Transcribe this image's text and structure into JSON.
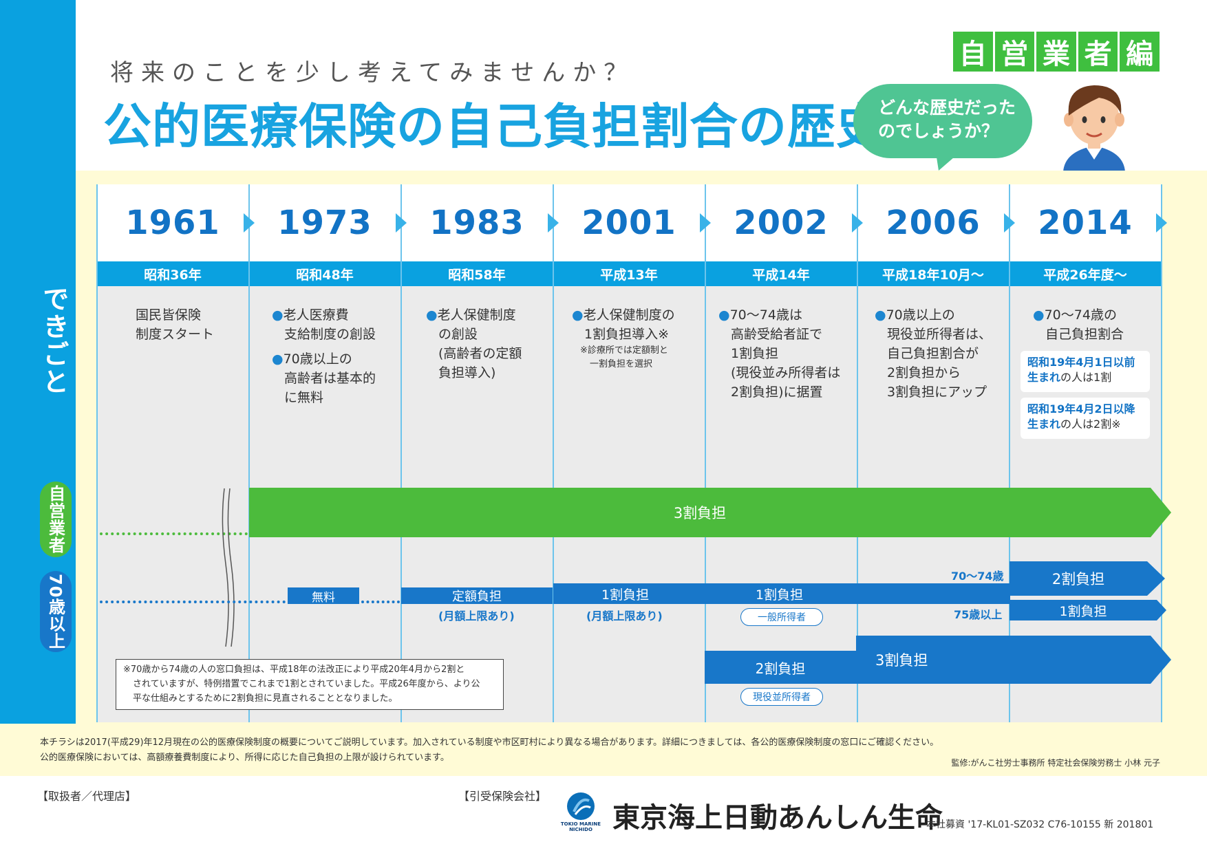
{
  "header": {
    "subtitle": "将来のことを少し考えてみませんか？",
    "title": "公的医療保険の自己負担割合の歴史",
    "badge_chars": [
      "自",
      "営",
      "業",
      "者",
      "編"
    ],
    "bubble_line1": "どんな歴史だった",
    "bubble_line2": "のでしょうか？"
  },
  "sidebar": {
    "label": "できごと",
    "pill_self_employed": "自営業者",
    "pill_70_over": "70歳以上"
  },
  "columns": [
    {
      "year": "1961",
      "era": "昭和36年"
    },
    {
      "year": "1973",
      "era": "昭和48年"
    },
    {
      "year": "1983",
      "era": "昭和58年"
    },
    {
      "year": "2001",
      "era": "平成13年"
    },
    {
      "year": "2002",
      "era": "平成14年"
    },
    {
      "year": "2006",
      "era": "平成18年10月～"
    },
    {
      "year": "2014",
      "era": "平成26年度～"
    }
  ],
  "events": {
    "c1_l1": "国民皆保険",
    "c1_l2": "制度スタート",
    "c2_a1": "老人医療費",
    "c2_a2": "支給制度の創設",
    "c2_b1": "70歳以上の",
    "c2_b2": "高齢者は基本的",
    "c2_b3": "に無料",
    "c3_l1": "老人保健制度",
    "c3_l2": "の創設",
    "c3_l3": "(高齢者の定額",
    "c3_l4": "負担導入)",
    "c4_l1": "老人保健制度の",
    "c4_l2": "1割負担導入※",
    "c4_n1": "※診療所では定額制と",
    "c4_n2": "一割負担を選択",
    "c5_l1": "70～74歳は",
    "c5_l2": "高齢受給者証で",
    "c5_l3": "1割負担",
    "c5_l4": "(現役並み所得者は",
    "c5_l5": "2割負担)に据置",
    "c6_l1": "70歳以上の",
    "c6_l2": "現役並所得者は、",
    "c6_l3": "自己負担割合が",
    "c6_l4": "2割負担から",
    "c6_l5": "3割負担にアップ",
    "c7_l1": "70～74歳の",
    "c7_l2": "自己負担割合",
    "c7_box1_b": "昭和19年4月1日以前",
    "c7_box1_b2": "生まれ",
    "c7_box1_t": "の人は1割",
    "c7_box2_b": "昭和19年4月2日以降",
    "c7_box2_b2": "生まれ",
    "c7_box2_t": "の人は2割※"
  },
  "bars": {
    "self_employed": "3割負担",
    "free": "無料",
    "flat": "定額負担",
    "flat_sub": "(月額上限あり)",
    "one_2001": "1割負担",
    "one_2001_sub": "(月額上限あり)",
    "one_2002": "1割負担",
    "general_tag": "一般所得者",
    "two_2002": "2割負担",
    "active_tag": "現役並所得者",
    "three_2006": "3割負担",
    "age_70_74": "70～74歳",
    "age_75": "75歳以上",
    "two_2014": "2割負担",
    "one_2014": "1割負担"
  },
  "footnote": {
    "l1": "※70歳から74歳の人の窓口負担は、平成18年の法改正により平成20年4月から2割と",
    "l2": "されていますが、特例措置でこれまで1割とされていました。平成26年度から、より公",
    "l3": "平な仕組みとするために2割負担に見直されることとなりました。"
  },
  "disclaimer": {
    "l1": "本チラシは2017(平成29)年12月現在の公的医療保険制度の概要についてご説明しています。加入されている制度や市区町村により異なる場合があります。詳細につきましては、各公的医療保険制度の窓口にご確認ください。",
    "l2": "公的医療保険においては、高額療養費制度により、所得に応じた自己負担の上限が設けられています。",
    "supervisor": "監修:がんこ社労士事務所 特定社会保険労務士 小林 元子"
  },
  "footer": {
    "agent_label": "【取扱者／代理店】",
    "insurer_label": "【引受保険会社】",
    "logo_text_1": "TOKIO MARINE",
    "logo_text_2": "NICHIDO",
    "company": "東京海上日動あんしん生命",
    "code": "本社募資 '17-KL01-SZ032 C76-10155 新 201801"
  },
  "colors": {
    "accent_blue": "#0aa1e0",
    "dark_blue": "#1877c9",
    "green": "#4cbb3c",
    "bubble_green": "#4fc593",
    "yellow_bg": "#fffbd6"
  }
}
